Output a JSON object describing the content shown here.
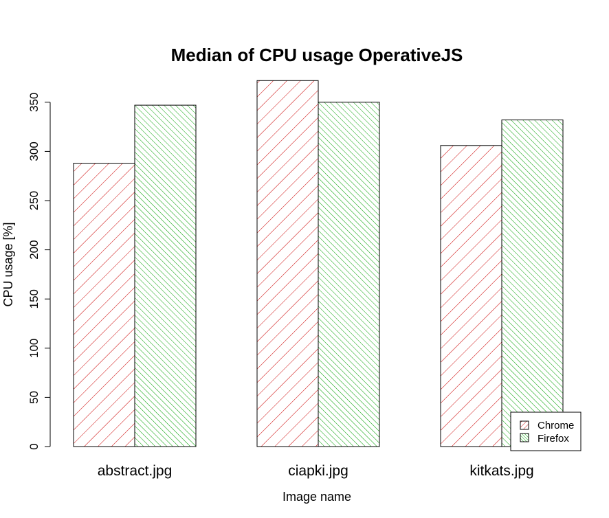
{
  "chart_data": {
    "type": "bar",
    "title": "Median of CPU usage OperativeJS",
    "xlabel": "Image name",
    "ylabel": "CPU usage [%]",
    "categories": [
      "abstract.jpg",
      "ciapki.jpg",
      "kitkats.jpg"
    ],
    "series": [
      {
        "name": "Chrome",
        "values": [
          288,
          372,
          306
        ],
        "color": "#cc0000"
      },
      {
        "name": "Firefox",
        "values": [
          347,
          350,
          332
        ],
        "color": "#00a000"
      }
    ],
    "ylim": [
      0,
      375
    ],
    "yticks": [
      "0",
      "50",
      "100",
      "150",
      "200",
      "250",
      "300",
      "350"
    ],
    "grid": false,
    "legend_position": "bottom-right"
  }
}
